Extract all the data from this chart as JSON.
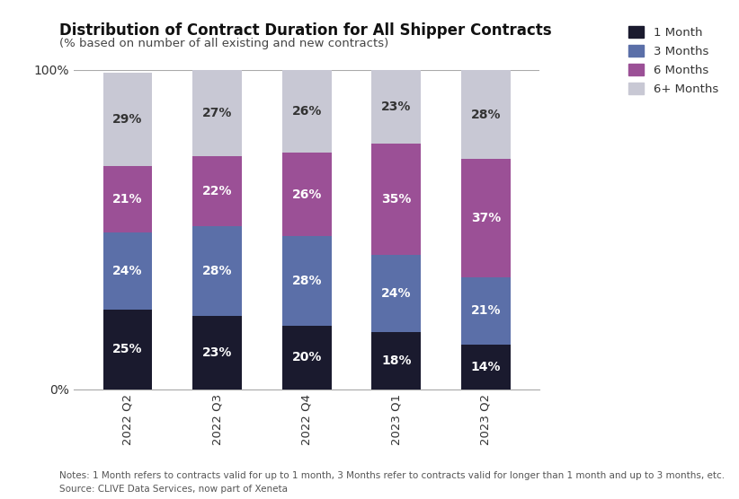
{
  "title": "Distribution of Contract Duration for All Shipper Contracts",
  "subtitle": "(% based on number of all existing and new contracts)",
  "categories": [
    "2022 Q2",
    "2022 Q3",
    "2022 Q4",
    "2023 Q1",
    "2023 Q2"
  ],
  "series": [
    {
      "name": "1 Month",
      "values": [
        25,
        23,
        20,
        18,
        14
      ],
      "color": "#1a1a2e",
      "text_color": "#ffffff"
    },
    {
      "name": "3 Months",
      "values": [
        24,
        28,
        28,
        24,
        21
      ],
      "color": "#5b6fa8",
      "text_color": "#ffffff"
    },
    {
      "name": "6 Months",
      "values": [
        21,
        22,
        26,
        35,
        37
      ],
      "color": "#9b5096",
      "text_color": "#ffffff"
    },
    {
      "name": "6+ Months",
      "values": [
        29,
        27,
        26,
        23,
        28
      ],
      "color": "#c8c8d4",
      "text_color": "#333333"
    }
  ],
  "ylim": [
    0,
    100
  ],
  "yticks": [
    0,
    100
  ],
  "ytick_labels": [
    "0%",
    "100%"
  ],
  "background_color": "#ffffff",
  "notes": "Notes: 1 Month refers to contracts valid for up to 1 month, 3 Months refer to contracts valid for longer than 1 month and up to 3 months, etc.",
  "source": "Source: CLIVE Data Services, now part of Xeneta",
  "title_fontsize": 12,
  "subtitle_fontsize": 9.5,
  "bar_width": 0.55,
  "legend_fontsize": 9.5,
  "label_fontsize": 10
}
